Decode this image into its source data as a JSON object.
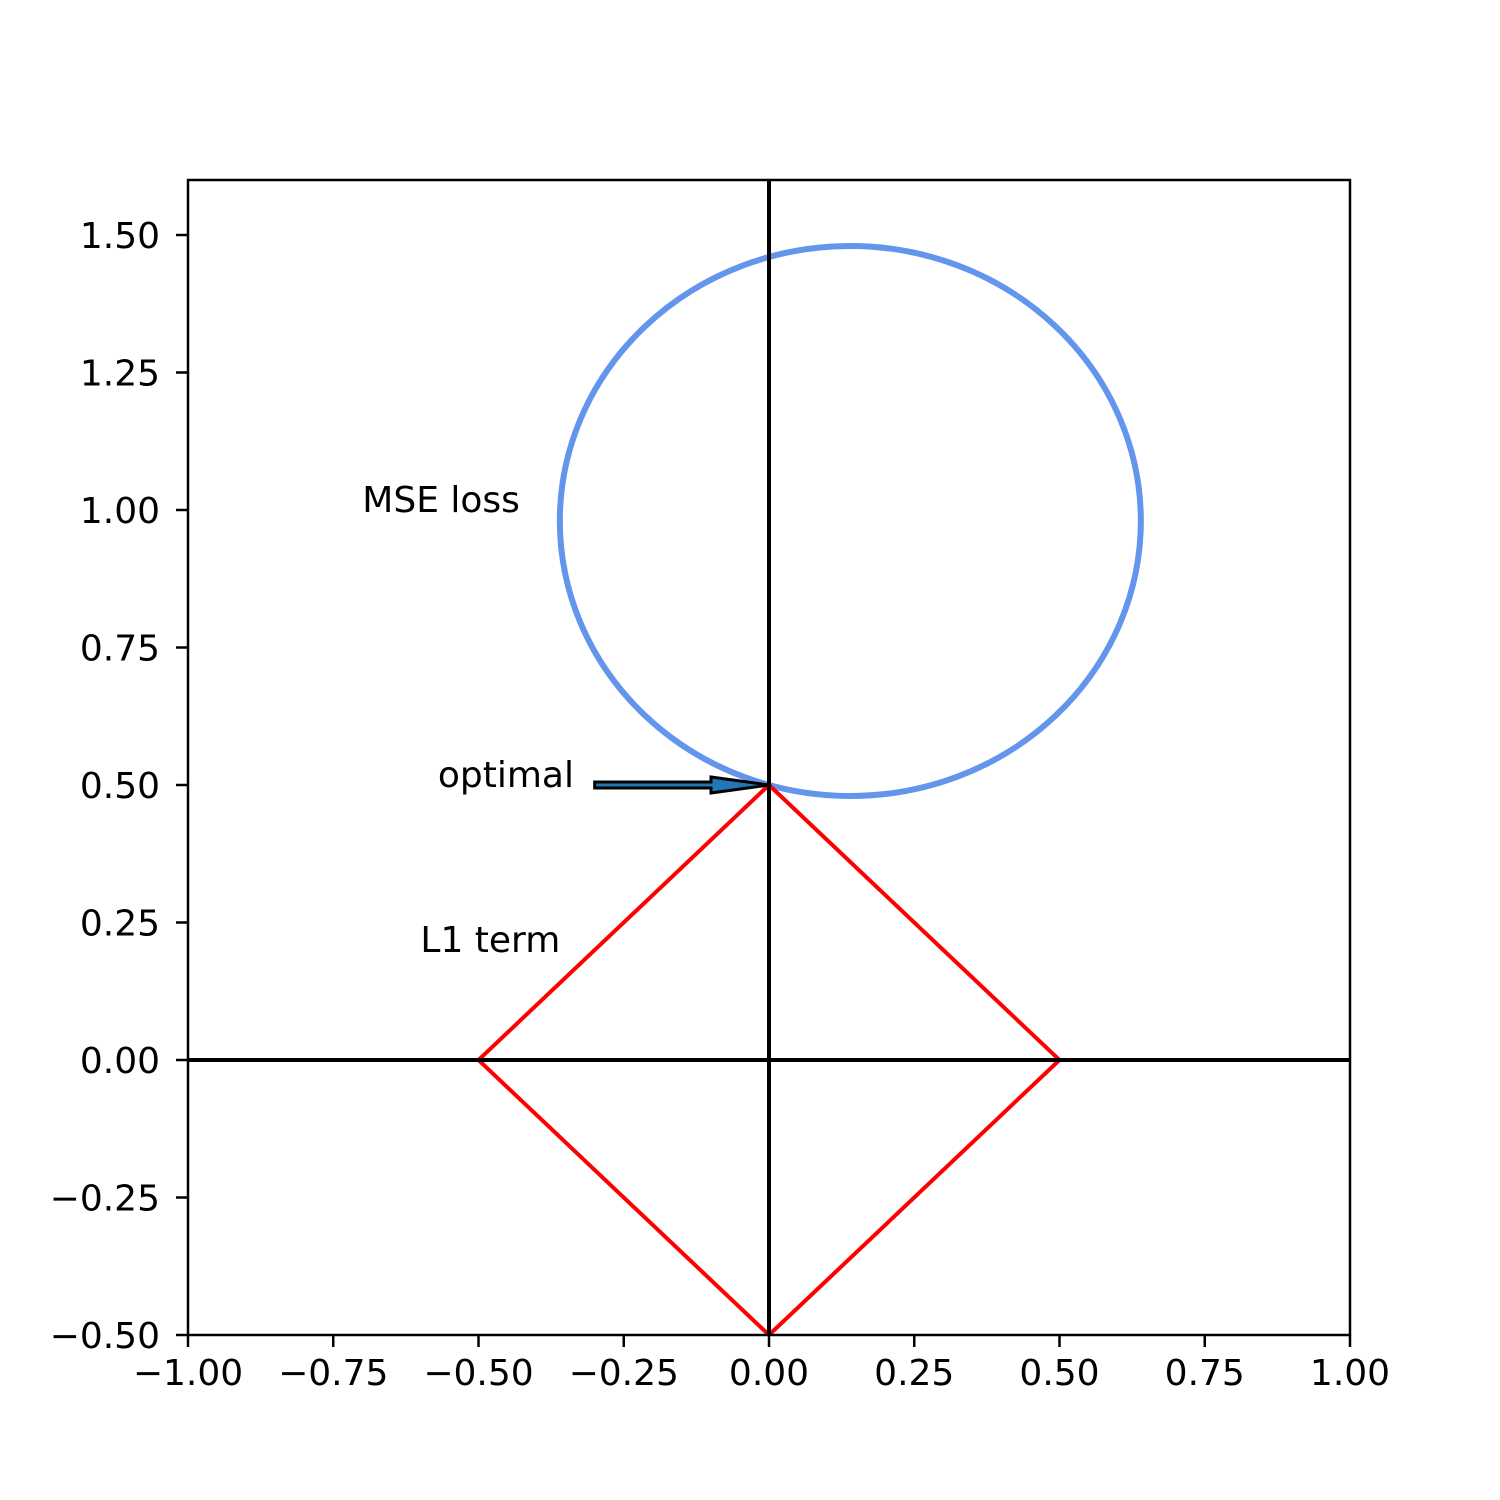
{
  "chart_data": {
    "type": "line",
    "title": "",
    "xlabel": "",
    "ylabel": "",
    "xlim": [
      -1.0,
      1.0
    ],
    "ylim": [
      -0.5,
      1.6
    ],
    "x_ticks": [
      -1.0,
      -0.75,
      -0.5,
      -0.25,
      0.0,
      0.25,
      0.5,
      0.75,
      1.0
    ],
    "x_tick_labels": [
      "−1.00",
      "−0.75",
      "−0.50",
      "−0.25",
      "0.00",
      "0.25",
      "0.50",
      "0.75",
      "1.00"
    ],
    "y_ticks": [
      -0.5,
      -0.25,
      0.0,
      0.25,
      0.5,
      0.75,
      1.0,
      1.25,
      1.5
    ],
    "y_tick_labels": [
      "−0.50",
      "−0.25",
      "0.00",
      "0.25",
      "0.50",
      "0.75",
      "1.00",
      "1.25",
      "1.50"
    ],
    "grid": false,
    "legend": "none",
    "series": [
      {
        "type": "ellipse",
        "center": [
          0.14,
          0.98
        ],
        "radii": [
          0.5,
          0.5
        ],
        "color": "#6495ed"
      },
      {
        "type": "polygon",
        "x": [
          0.0,
          0.5,
          0.0,
          -0.5,
          0.0
        ],
        "y": [
          0.5,
          0.0,
          -0.5,
          0.0,
          0.5
        ],
        "color": "#ff0000"
      }
    ],
    "reference_lines": [
      {
        "orientation": "vertical",
        "at": 0.0,
        "color": "#000000"
      },
      {
        "orientation": "horizontal",
        "at": 0.0,
        "color": "#000000"
      }
    ],
    "annotations": [
      {
        "text": "MSE loss",
        "x": -0.7,
        "y": 1.0
      },
      {
        "text": "optimal",
        "x": -0.57,
        "y": 0.5,
        "arrow_from": [
          -0.3,
          0.5
        ],
        "arrow_to": [
          0.0,
          0.5
        ],
        "arrow_color": "#1f77b4"
      },
      {
        "text": "L1 term",
        "x": -0.6,
        "y": 0.2
      }
    ]
  }
}
